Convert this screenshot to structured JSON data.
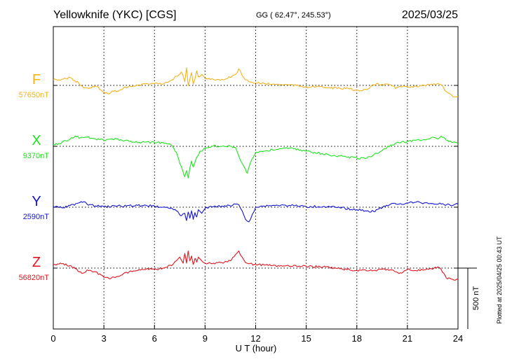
{
  "header": {
    "station": "Yellowknife (YKC)  [CGS]",
    "coords": "GG ( 62.47°, 245.53°)",
    "date": "2025/03/25"
  },
  "footer_note": "Plotted at 2025/04/25 00:43 UT",
  "chart_data": {
    "type": "line",
    "xlabel": "U T (hour)",
    "xlim": [
      0,
      24
    ],
    "xticks": [
      0,
      3,
      6,
      9,
      12,
      15,
      18,
      21,
      24
    ],
    "xtick_labels": [
      "0",
      "3",
      "6",
      "9",
      "12",
      "15",
      "18",
      "21",
      "24"
    ],
    "scale_bar": {
      "value": 500,
      "label": "500 nT"
    },
    "panel_range_nT": 500,
    "series": [
      {
        "name": "F",
        "baseline_label": "57650nT",
        "baseline_nT": 57650,
        "color": "#f5b21b",
        "x": [
          0,
          0.5,
          1.0,
          1.2,
          1.5,
          1.8,
          2.0,
          2.5,
          3.0,
          3.3,
          3.5,
          3.8,
          4.0,
          4.5,
          5.0,
          5.5,
          6.0,
          6.5,
          7.0,
          7.3,
          7.6,
          7.8,
          7.9,
          8.0,
          8.1,
          8.2,
          8.3,
          8.4,
          8.5,
          8.6,
          8.8,
          9.0,
          9.5,
          10.0,
          10.5,
          10.8,
          11.0,
          11.2,
          11.4,
          11.6,
          11.8,
          12.0,
          12.5,
          13.0,
          14.0,
          15.0,
          16.0,
          17.0,
          17.5,
          18.0,
          18.3,
          18.6,
          19.0,
          19.5,
          20.0,
          20.3,
          20.6,
          21.0,
          21.5,
          22.0,
          22.5,
          22.8,
          23.0,
          23.3,
          23.6,
          23.8,
          24.0
        ],
        "values": [
          57695,
          57700,
          57715,
          57690,
          57670,
          57630,
          57630,
          57645,
          57595,
          57580,
          57605,
          57600,
          57615,
          57645,
          57650,
          57665,
          57665,
          57660,
          57695,
          57725,
          57760,
          57680,
          57795,
          57650,
          57700,
          57755,
          57660,
          57700,
          57770,
          57720,
          57740,
          57705,
          57700,
          57700,
          57715,
          57740,
          57785,
          57730,
          57695,
          57680,
          57675,
          57670,
          57665,
          57660,
          57655,
          57640,
          57635,
          57625,
          57625,
          57610,
          57605,
          57615,
          57655,
          57660,
          57655,
          57625,
          57640,
          57640,
          57645,
          57650,
          57655,
          57665,
          57655,
          57600,
          57575,
          57555,
          57560
        ]
      },
      {
        "name": "X",
        "baseline_label": "9370nT",
        "baseline_nT": 9370,
        "color": "#1ee21e",
        "x": [
          0,
          0.5,
          1.0,
          1.3,
          1.6,
          2.0,
          2.5,
          3.0,
          3.5,
          4.0,
          4.5,
          5.0,
          5.5,
          6.0,
          6.5,
          7.0,
          7.3,
          7.5,
          7.7,
          7.8,
          7.9,
          8.0,
          8.1,
          8.2,
          8.3,
          8.5,
          8.7,
          9.0,
          9.3,
          9.5,
          10.0,
          10.5,
          10.8,
          11.0,
          11.2,
          11.4,
          11.5,
          11.7,
          12.0,
          12.5,
          13.0,
          13.5,
          14.0,
          15.0,
          15.5,
          16.0,
          17.0,
          18.0,
          18.5,
          19.0,
          19.5,
          20.0,
          20.5,
          21.0,
          21.5,
          22.0,
          22.5,
          22.8,
          23.0,
          23.3,
          23.6,
          24.0
        ],
        "values": [
          9385,
          9400,
          9430,
          9455,
          9440,
          9445,
          9430,
          9420,
          9430,
          9425,
          9410,
          9400,
          9405,
          9400,
          9400,
          9380,
          9320,
          9230,
          9160,
          9120,
          9170,
          9110,
          9190,
          9250,
          9200,
          9280,
          9330,
          9350,
          9360,
          9375,
          9370,
          9370,
          9360,
          9290,
          9230,
          9180,
          9150,
          9240,
          9320,
          9330,
          9340,
          9350,
          9355,
          9330,
          9320,
          9305,
          9290,
          9275,
          9270,
          9300,
          9335,
          9380,
          9400,
          9410,
          9420,
          9425,
          9445,
          9430,
          9455,
          9420,
          9405,
          9390
        ]
      },
      {
        "name": "Y",
        "baseline_label": "2590nT",
        "baseline_nT": 2590,
        "color": "#1414d2",
        "x": [
          0,
          0.5,
          1.0,
          1.5,
          1.8,
          2.0,
          2.5,
          3.0,
          4.0,
          5.0,
          6.0,
          6.5,
          7.0,
          7.3,
          7.6,
          7.8,
          7.9,
          8.0,
          8.1,
          8.2,
          8.3,
          8.4,
          8.5,
          8.6,
          8.8,
          9.0,
          9.5,
          10.0,
          10.5,
          10.8,
          11.0,
          11.2,
          11.4,
          11.6,
          11.8,
          12.0,
          12.5,
          13.0,
          14.0,
          15.0,
          16.0,
          17.0,
          18.0,
          18.5,
          19.0,
          19.3,
          19.6,
          20.0,
          20.5,
          21.0,
          21.5,
          22.0,
          22.5,
          23.0,
          23.5,
          24.0
        ],
        "values": [
          2595,
          2585,
          2605,
          2625,
          2635,
          2615,
          2600,
          2595,
          2600,
          2605,
          2600,
          2590,
          2585,
          2560,
          2520,
          2540,
          2480,
          2550,
          2500,
          2560,
          2490,
          2545,
          2510,
          2570,
          2540,
          2580,
          2595,
          2600,
          2600,
          2615,
          2610,
          2560,
          2490,
          2470,
          2530,
          2590,
          2600,
          2605,
          2605,
          2595,
          2595,
          2585,
          2570,
          2560,
          2555,
          2575,
          2600,
          2615,
          2615,
          2625,
          2630,
          2625,
          2620,
          2615,
          2610,
          2615
        ]
      },
      {
        "name": "Z",
        "baseline_label": "56820nT",
        "baseline_nT": 56820,
        "color": "#e0141e",
        "x": [
          0,
          0.5,
          1.0,
          1.3,
          1.6,
          1.8,
          2.0,
          2.5,
          3.0,
          3.3,
          3.6,
          4.0,
          4.5,
          5.0,
          5.5,
          6.0,
          6.5,
          7.0,
          7.3,
          7.5,
          7.7,
          7.8,
          7.9,
          8.0,
          8.1,
          8.2,
          8.3,
          8.4,
          8.5,
          8.6,
          8.8,
          9.0,
          9.5,
          10.0,
          10.5,
          10.8,
          11.0,
          11.2,
          11.4,
          11.6,
          12.0,
          12.5,
          13.0,
          14.0,
          15.0,
          16.0,
          17.0,
          18.0,
          18.5,
          19.0,
          19.5,
          19.8,
          20.0,
          20.5,
          21.0,
          21.5,
          22.0,
          22.5,
          22.8,
          23.0,
          23.3,
          23.6,
          24.0
        ],
        "values": [
          56850,
          56855,
          56840,
          56815,
          56790,
          56780,
          56805,
          56790,
          56745,
          56735,
          56745,
          56760,
          56790,
          56800,
          56810,
          56810,
          56820,
          56840,
          56880,
          56910,
          56860,
          56940,
          56860,
          56960,
          56880,
          56920,
          56850,
          56900,
          56870,
          56910,
          56880,
          56860,
          56860,
          56865,
          56880,
          56930,
          56960,
          56910,
          56865,
          56855,
          56850,
          56845,
          56840,
          56835,
          56835,
          56830,
          56815,
          56800,
          56805,
          56800,
          56810,
          56810,
          56805,
          56775,
          56810,
          56800,
          56805,
          56810,
          56830,
          56810,
          56740,
          56730,
          56725
        ]
      }
    ]
  }
}
